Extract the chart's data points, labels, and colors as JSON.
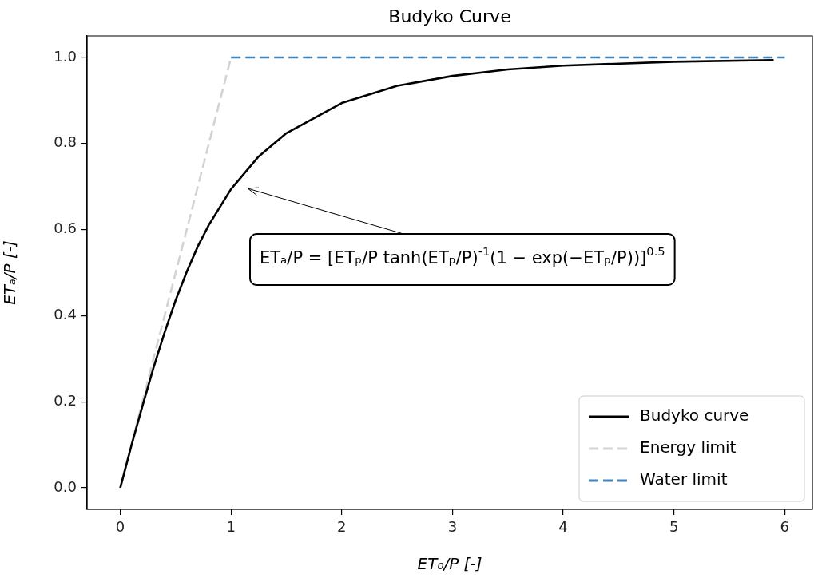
{
  "chart_data": {
    "type": "line",
    "title": "Budyko Curve",
    "xlabel": "ET₀/P [-]",
    "ylabel": "ETₐ/P [-]",
    "xlim": [
      -0.3,
      6.25
    ],
    "ylim": [
      -0.05,
      1.05
    ],
    "xticks": [
      0,
      1,
      2,
      3,
      4,
      5,
      6
    ],
    "yticks": [
      {
        "value": 0,
        "label": "0.0"
      },
      0.2,
      0.4,
      0.6,
      0.8,
      {
        "value": 1,
        "label": "1.0"
      }
    ],
    "grid": false,
    "legend": "bottom right",
    "marker": "none",
    "series": [
      {
        "name": "Budyko curve",
        "color": "#000000",
        "line_style": "solid",
        "x": [
          0,
          0.05,
          0.1,
          0.2,
          0.3,
          0.4,
          0.5,
          0.6,
          0.7,
          0.8,
          1.0,
          1.25,
          1.5,
          2,
          2.5,
          3,
          3.5,
          4,
          5,
          5.9
        ],
        "values": [
          0,
          0.049,
          0.098,
          0.19,
          0.279,
          0.361,
          0.436,
          0.502,
          0.561,
          0.611,
          0.694,
          0.77,
          0.824,
          0.894,
          0.934,
          0.957,
          0.972,
          0.981,
          0.99,
          0.994
        ]
      },
      {
        "name": "Energy limit",
        "color": "#d3d3d3",
        "line_style": "dashed",
        "x": [
          0,
          1
        ],
        "values": [
          0,
          1
        ]
      },
      {
        "name": "Water limit",
        "color": "#4682b4",
        "line_style": "dashed",
        "x": [
          1,
          6
        ],
        "values": [
          1,
          1
        ]
      }
    ],
    "annotations": [
      "ETₐ/P = [ETₚ/P tanh(ETₚ/P)$^{-1}$(1 − exp(−ETₚ/P))]$^{0.5}$"
    ]
  }
}
